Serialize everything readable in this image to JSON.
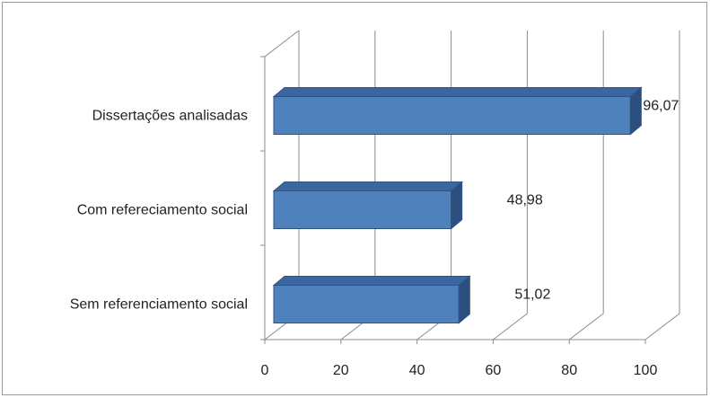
{
  "chart_data": {
    "type": "bar",
    "orientation": "horizontal",
    "style": "3d",
    "categories": [
      "Dissertações analisadas",
      "Com refereciamento  social",
      "Sem referenciamento  social"
    ],
    "values": [
      96.07,
      48.98,
      51.02
    ],
    "data_labels": [
      "96,07",
      "48,98",
      "51,02"
    ],
    "xlim": [
      0,
      100
    ],
    "xticks": [
      0,
      20,
      40,
      60,
      80,
      100
    ],
    "xtick_labels": [
      "0",
      "20",
      "40",
      "60",
      "80",
      "100"
    ],
    "title": "",
    "xlabel": "",
    "ylabel": "",
    "grid": true,
    "legend": "none",
    "colors": {
      "bar_front": "#4f81bd",
      "bar_top": "#3b67a0",
      "bar_side": "#2c4f7f",
      "bar_edge": "#2f5481",
      "grid": "#8c8c8c"
    }
  }
}
